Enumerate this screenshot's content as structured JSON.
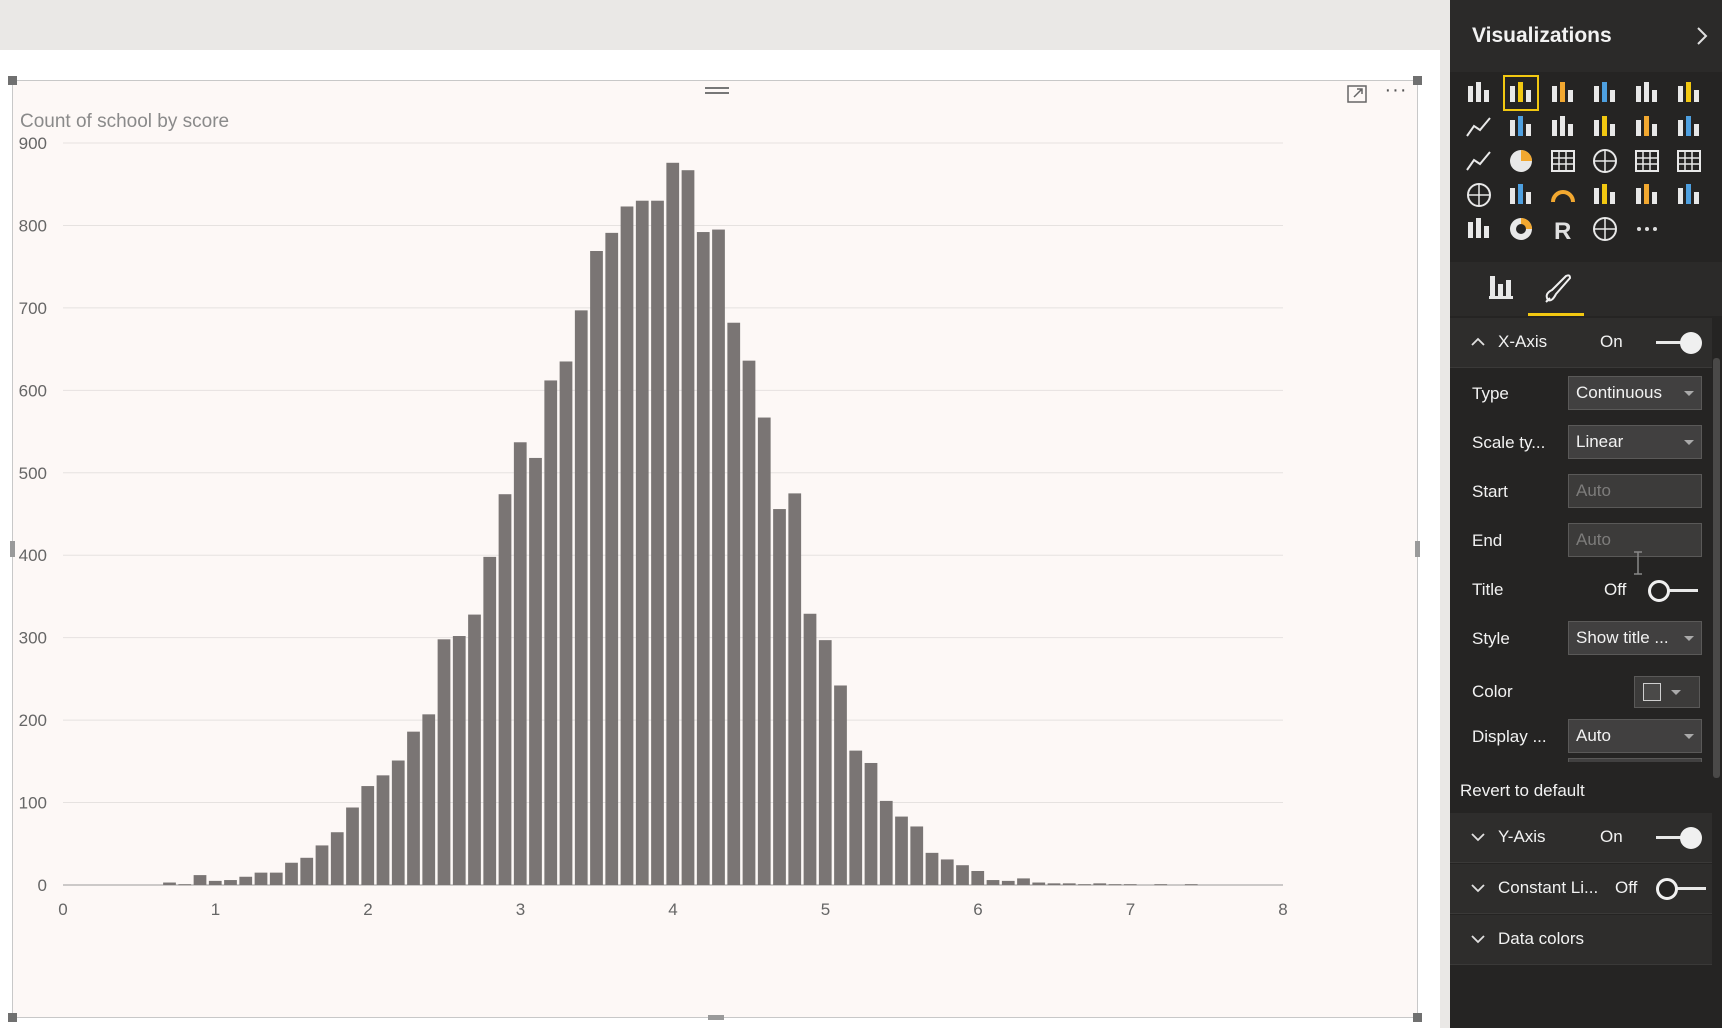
{
  "pane": {
    "title": "Visualizations",
    "tabs": [
      "Fields",
      "Format"
    ],
    "viz_icons": [
      "stacked-bar-icon",
      "stacked-column-icon",
      "clustered-bar-icon",
      "clustered-column-icon",
      "100-stacked-bar-icon",
      "100-stacked-column-icon",
      "line-chart-icon",
      "area-chart-icon",
      "stacked-area-icon",
      "line-stacked-column-icon",
      "line-clustered-column-icon",
      "ribbon-chart-icon",
      "scatter-chart-icon",
      "pie-chart-icon",
      "treemap-icon",
      "map-icon",
      "table-icon",
      "matrix-icon",
      "filled-map-icon",
      "funnel-icon",
      "gauge-icon",
      "multi-row-card-icon",
      "card-icon",
      "kpi-icon",
      "slicer-icon",
      "donut-chart-icon",
      "r-script-visual-icon",
      "shape-map-icon",
      "more-visuals-icon"
    ],
    "x_axis": {
      "label": "X-Axis",
      "state": "On",
      "type_label": "Type",
      "type_value": "Continuous",
      "scale_label": "Scale ty...",
      "scale_value": "Linear",
      "start_label": "Start",
      "start_placeholder": "Auto",
      "end_label": "End",
      "end_placeholder": "Auto",
      "title_label": "Title",
      "title_state": "Off",
      "style_label": "Style",
      "style_value": "Show title ...",
      "color_label": "Color",
      "display_label": "Display ...",
      "display_value": "Auto"
    },
    "revert": "Revert to default",
    "y_axis": {
      "label": "Y-Axis",
      "state": "On"
    },
    "constant_line": {
      "label": "Constant Li...",
      "state": "Off"
    },
    "data_colors": {
      "label": "Data colors"
    },
    "colors": {
      "accent": "#f2c811",
      "pane_bg": "#252423",
      "bar": "#7a7574"
    }
  },
  "chart_data": {
    "type": "bar",
    "title": "Count of school by score",
    "xlabel": "",
    "ylabel": "",
    "xlim": [
      0,
      8
    ],
    "ylim": [
      0,
      900
    ],
    "x_ticks": [
      "0",
      "1",
      "2",
      "3",
      "4",
      "5",
      "6",
      "7",
      "8"
    ],
    "y_ticks": [
      "0",
      "100",
      "200",
      "300",
      "400",
      "500",
      "600",
      "700",
      "800",
      "900"
    ],
    "bin_width": 0.1,
    "x": [
      0.7,
      0.8,
      0.9,
      1.0,
      1.1,
      1.2,
      1.3,
      1.4,
      1.5,
      1.6,
      1.7,
      1.8,
      1.9,
      2.0,
      2.1,
      2.2,
      2.3,
      2.4,
      2.5,
      2.6,
      2.7,
      2.8,
      2.9,
      3.0,
      3.1,
      3.2,
      3.3,
      3.4,
      3.5,
      3.6,
      3.7,
      3.8,
      3.9,
      4.0,
      4.1,
      4.2,
      4.3,
      4.4,
      4.5,
      4.6,
      4.7,
      4.8,
      4.9,
      5.0,
      5.1,
      5.2,
      5.3,
      5.4,
      5.5,
      5.6,
      5.7,
      5.8,
      5.9,
      6.0,
      6.1,
      6.2,
      6.3,
      6.4,
      6.5,
      6.6,
      6.7,
      6.8,
      6.9,
      7.0,
      7.1,
      7.2,
      7.3,
      7.4
    ],
    "values": [
      3,
      1,
      12,
      5,
      6,
      10,
      15,
      15,
      27,
      33,
      48,
      64,
      94,
      120,
      133,
      151,
      186,
      207,
      298,
      302,
      328,
      398,
      474,
      537,
      518,
      612,
      635,
      697,
      769,
      791,
      823,
      830,
      830,
      876,
      867,
      792,
      795,
      682,
      636,
      567,
      456,
      475,
      329,
      297,
      242,
      163,
      148,
      102,
      83,
      71,
      39,
      31,
      24,
      17,
      6,
      5,
      8,
      3,
      2,
      2,
      1,
      2,
      1,
      1,
      0,
      1,
      0,
      1
    ]
  }
}
